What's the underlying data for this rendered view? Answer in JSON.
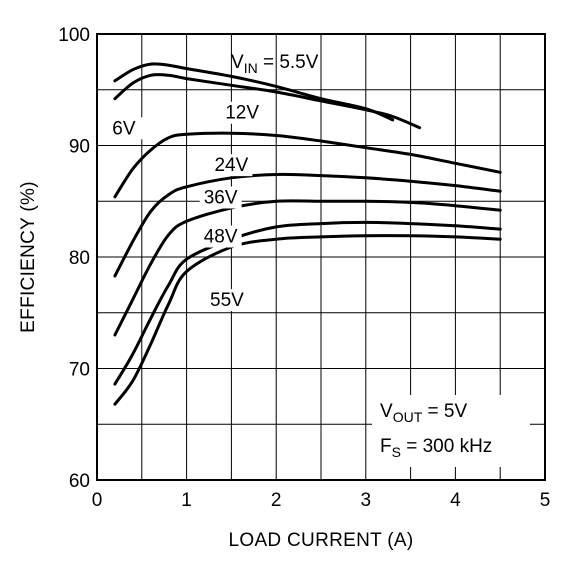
{
  "chart_data": {
    "type": "line",
    "xlabel": "LOAD CURRENT (A)",
    "ylabel": "EFFICIENCY (%)",
    "xlim": [
      0,
      5
    ],
    "ylim": [
      60,
      100
    ],
    "xticks": [
      0,
      1,
      2,
      3,
      4,
      5
    ],
    "yticks": [
      60,
      70,
      80,
      90,
      100
    ],
    "grid": true,
    "annotation_top": {
      "main": "V",
      "sub": "IN",
      "rest": " = 5.5V"
    },
    "annotation_box": [
      {
        "main": "V",
        "sub": "OUT",
        "rest": " = 5V"
      },
      {
        "main": "F",
        "sub": "S",
        "rest": " = 300 kHz"
      }
    ],
    "series": [
      {
        "name": "5.5V",
        "x": [
          0.2,
          0.4,
          0.6,
          0.8,
          1.0,
          1.5,
          2.0,
          2.5,
          3.0,
          3.3
        ],
        "y": [
          95.8,
          96.8,
          97.3,
          97.2,
          96.9,
          96.2,
          95.3,
          94.2,
          93.3,
          92.3
        ]
      },
      {
        "name": "6V",
        "label": "6V",
        "x": [
          0.2,
          0.4,
          0.6,
          0.8,
          1.0,
          1.5,
          2.0,
          2.5,
          3.0,
          3.3,
          3.6
        ],
        "y": [
          94.2,
          95.6,
          96.3,
          96.3,
          96.0,
          95.4,
          94.8,
          94.0,
          93.2,
          92.6,
          91.6
        ]
      },
      {
        "name": "12V",
        "label": "12V",
        "x": [
          0.2,
          0.4,
          0.6,
          0.8,
          1.0,
          1.5,
          2.0,
          2.5,
          3.0,
          3.5,
          4.0,
          4.5
        ],
        "y": [
          85.4,
          87.9,
          89.6,
          90.7,
          91.0,
          91.1,
          90.9,
          90.4,
          89.8,
          89.2,
          88.4,
          87.6
        ]
      },
      {
        "name": "24V",
        "label": "24V",
        "x": [
          0.2,
          0.4,
          0.6,
          0.8,
          1.0,
          1.5,
          2.0,
          2.5,
          3.0,
          3.5,
          4.0,
          4.5
        ],
        "y": [
          78.3,
          81.4,
          84.1,
          85.6,
          86.3,
          87.1,
          87.4,
          87.3,
          87.1,
          86.8,
          86.4,
          85.9
        ]
      },
      {
        "name": "36V",
        "label": "36V",
        "x": [
          0.2,
          0.4,
          0.6,
          0.8,
          1.0,
          1.5,
          2.0,
          2.5,
          3.0,
          3.5,
          4.0,
          4.5
        ],
        "y": [
          73.0,
          76.2,
          79.4,
          82.0,
          83.2,
          84.4,
          85.0,
          85.0,
          85.0,
          84.9,
          84.6,
          84.2
        ]
      },
      {
        "name": "48V",
        "label": "48V",
        "x": [
          0.2,
          0.4,
          0.6,
          0.8,
          1.0,
          1.5,
          2.0,
          2.5,
          3.0,
          3.5,
          4.0,
          4.5
        ],
        "y": [
          68.6,
          71.3,
          74.5,
          77.5,
          79.8,
          81.6,
          82.7,
          83.0,
          83.1,
          83.0,
          82.8,
          82.5
        ]
      },
      {
        "name": "55V",
        "label": "55V",
        "x": [
          0.2,
          0.4,
          0.6,
          0.8,
          1.0,
          1.5,
          2.0,
          2.5,
          3.0,
          3.5,
          4.0,
          4.5
        ],
        "y": [
          66.8,
          68.9,
          72.2,
          75.8,
          78.7,
          80.9,
          81.6,
          81.8,
          81.9,
          81.9,
          81.8,
          81.6
        ]
      }
    ]
  }
}
